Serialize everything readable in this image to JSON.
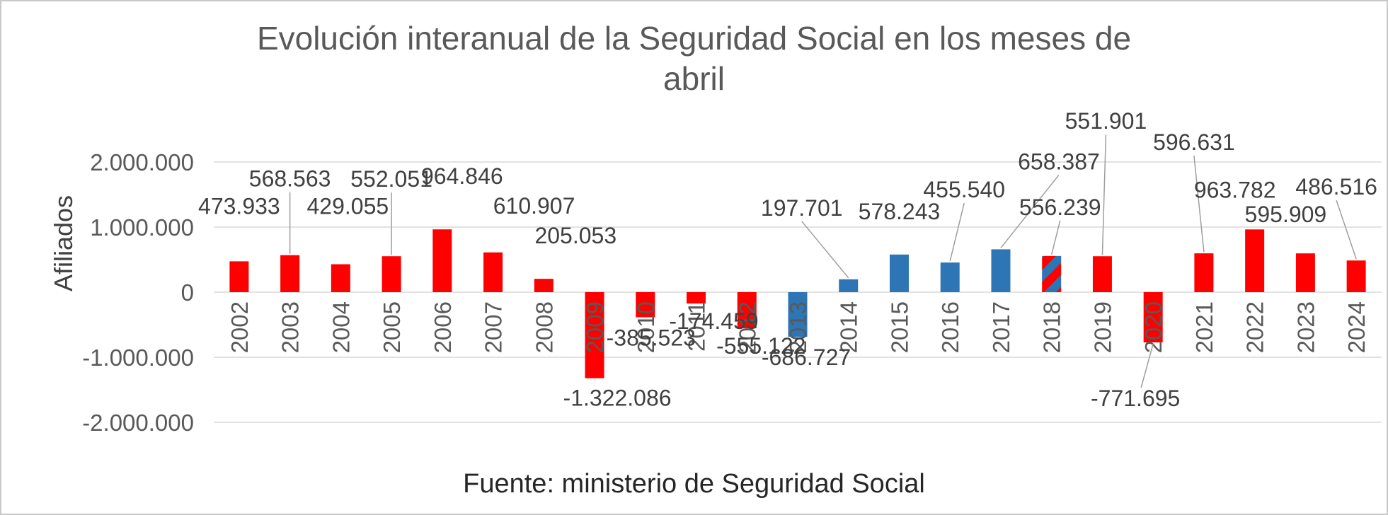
{
  "chart_data": {
    "type": "bar",
    "title": "Evolución interanual de la Seguridad Social en los meses de abril",
    "ylabel": "Afiliados",
    "source": "Fuente: ministerio de Seguridad Social",
    "ylim": [
      -2000000,
      2000000
    ],
    "grid": true,
    "legend": "none",
    "yticks": [
      {
        "value": 2000000,
        "label": "2.000.000"
      },
      {
        "value": 1000000,
        "label": "1.000.000"
      },
      {
        "value": 0,
        "label": "0"
      },
      {
        "value": -1000000,
        "label": "-1.000.000"
      },
      {
        "value": -2000000,
        "label": "-2.000.000"
      }
    ],
    "colors": {
      "red": "#FF0000",
      "blue": "#2E75B6",
      "grid": "#D9D9D9",
      "axis_text": "#595959",
      "label_text": "#404040",
      "leader": "#9E9E9E",
      "title_text": "#595959",
      "border": "#C9C9C9"
    },
    "bars": [
      {
        "year": "2002",
        "value": 473933,
        "label": "473.933",
        "color": "red",
        "label_dx": 0,
        "label_dy": -55,
        "leader": false
      },
      {
        "year": "2003",
        "value": 568563,
        "label": "568.563",
        "color": "red",
        "label_dx": 0,
        "label_dy": -85,
        "leader": true
      },
      {
        "year": "2004",
        "value": 429055,
        "label": "429.055",
        "color": "red",
        "label_dx": 10,
        "label_dy": -59,
        "leader": false
      },
      {
        "year": "2005",
        "value": 552051,
        "label": "552.051",
        "color": "red",
        "label_dx": 0,
        "label_dy": -86,
        "leader": true
      },
      {
        "year": "2006",
        "value": 964846,
        "label": "964.846",
        "color": "red",
        "label_dx": 28,
        "label_dy": -52,
        "leader": false
      },
      {
        "year": "2007",
        "value": 610907,
        "label": "610.907",
        "color": "red",
        "label_dx": 58,
        "label_dy": -43,
        "leader": false
      },
      {
        "year": "2008",
        "value": 205053,
        "label": "205.053",
        "color": "red",
        "label_dx": 45,
        "label_dy": -38,
        "leader": false
      },
      {
        "year": "2009",
        "value": -1322086,
        "label": "-1.322.086",
        "color": "red",
        "label_dx": 32,
        "label_dy": 5,
        "leader": false
      },
      {
        "year": "2010",
        "value": -385523,
        "label": "-385.523",
        "color": "red",
        "label_dx": 8,
        "label_dy": 6,
        "leader": false
      },
      {
        "year": "2011",
        "value": -174459,
        "label": "-174.459",
        "color": "red",
        "label_dx": 25,
        "label_dy": 2,
        "leader": false
      },
      {
        "year": "2012",
        "value": -555122,
        "label": "-555.122",
        "color": "red",
        "label_dx": 20,
        "label_dy": 2,
        "leader": false
      },
      {
        "year": "2013",
        "value": -686727,
        "label": "-686.727",
        "color": "blue",
        "label_dx": 12,
        "label_dy": 6,
        "leader": false
      },
      {
        "year": "2014",
        "value": 197701,
        "label": "197.701",
        "color": "blue",
        "label_dx": -66,
        "label_dy": -78,
        "leader": true
      },
      {
        "year": "2015",
        "value": 578243,
        "label": "578.243",
        "color": "blue",
        "label_dx": 0,
        "label_dy": -38,
        "leader": false
      },
      {
        "year": "2016",
        "value": 455540,
        "label": "455.540",
        "color": "blue",
        "label_dx": 20,
        "label_dy": -80,
        "leader": true
      },
      {
        "year": "2017",
        "value": 658387,
        "label": "658.387",
        "color": "blue",
        "label_dx": 82,
        "label_dy": -101,
        "leader": true
      },
      {
        "year": "2018",
        "value": 556239,
        "label": "556.239",
        "color": "striped",
        "label_dx": 12,
        "label_dy": -46,
        "leader": true
      },
      {
        "year": "2019",
        "value": 551901,
        "label": "551.901",
        "color": "red",
        "label_dx": 5,
        "label_dy": -168,
        "leader": true
      },
      {
        "year": "2020",
        "value": -771695,
        "label": "-771.695",
        "color": "red",
        "label_dx": -25,
        "label_dy": 56,
        "leader": true
      },
      {
        "year": "2021",
        "value": 596631,
        "label": "596.631",
        "color": "red",
        "label_dx": -14,
        "label_dy": -134,
        "leader": true
      },
      {
        "year": "2022",
        "value": 963782,
        "label": "963.782",
        "color": "red",
        "label_dx": -28,
        "label_dy": -33,
        "leader": false
      },
      {
        "year": "2023",
        "value": 595909,
        "label": "595.909",
        "color": "red",
        "label_dx": -28,
        "label_dy": -32,
        "leader": false
      },
      {
        "year": "2024",
        "value": 486516,
        "label": "486.516",
        "color": "red",
        "label_dx": -28,
        "label_dy": -81,
        "leader": true
      }
    ]
  }
}
